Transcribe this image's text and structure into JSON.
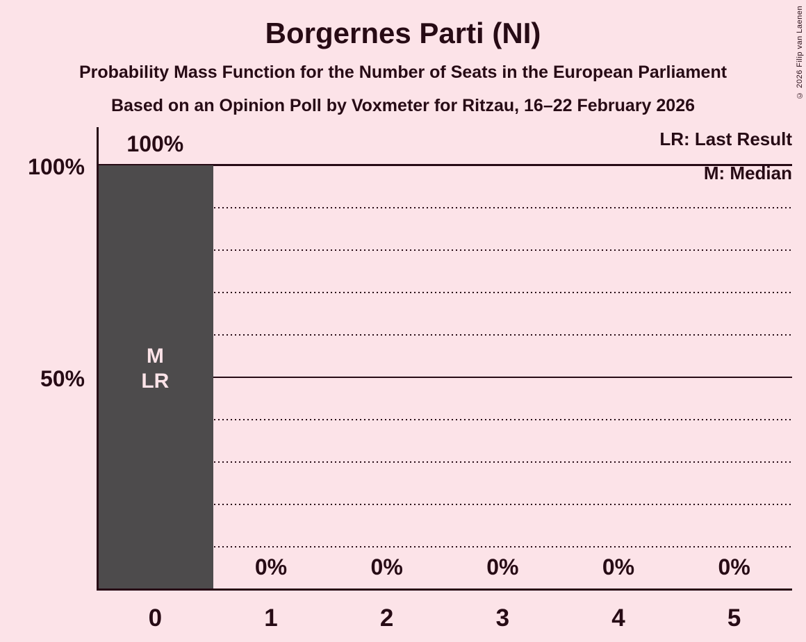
{
  "header": {
    "title": "Borgernes Parti (NI)",
    "subtitle1": "Probability Mass Function for the Number of Seats in the European Parliament",
    "subtitle2": "Based on an Opinion Poll by Voxmeter for Ritzau, 16–22 February 2026",
    "copyright": "© 2026 Filip van Laenen"
  },
  "legend": {
    "last_result": "LR: Last Result",
    "median": "M: Median"
  },
  "chart_data": {
    "type": "bar",
    "title": "Borgernes Parti (NI)",
    "categories": [
      "0",
      "1",
      "2",
      "3",
      "4",
      "5"
    ],
    "values": [
      100,
      0,
      0,
      0,
      0,
      0
    ],
    "bar_labels": [
      "100%",
      "0%",
      "0%",
      "0%",
      "0%",
      "0%"
    ],
    "yticks": [
      {
        "value": 100,
        "label": "100%"
      },
      {
        "value": 50,
        "label": "50%"
      }
    ],
    "ylim": [
      0,
      100
    ],
    "gridlines_solid": [
      50,
      100
    ],
    "gridlines_dotted": [
      10,
      20,
      30,
      40,
      60,
      70,
      80,
      90
    ],
    "annotations": [
      {
        "bar_index": 0,
        "lines": [
          "M",
          "LR"
        ]
      }
    ],
    "legend_position": "top-right",
    "grid": true,
    "colors": {
      "background": "#FCE3E8",
      "bar": "#4D4B4C",
      "text": "#270B15",
      "bar_text": "#FCE3E8"
    }
  }
}
